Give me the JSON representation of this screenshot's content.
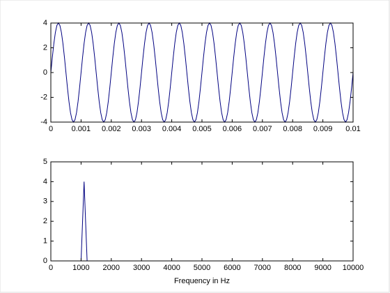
{
  "chart_data": [
    {
      "type": "line",
      "x": [
        0,
        5e-05,
        0.0001,
        0.00015,
        0.0002,
        0.00025,
        0.0003,
        0.00035,
        0.0004,
        0.00045,
        0.0005,
        0.00055,
        0.0006,
        0.00065,
        0.0007,
        0.00075,
        0.0008,
        0.00085,
        0.0009,
        0.00095,
        0.001,
        0.00105,
        0.0011,
        0.00115,
        0.0012,
        0.00125,
        0.0013,
        0.00135,
        0.0014,
        0.00145,
        0.0015,
        0.00155,
        0.0016,
        0.00165,
        0.0017,
        0.00175,
        0.0018,
        0.00185,
        0.0019,
        0.00195,
        0.002,
        0.00205,
        0.0021,
        0.00215,
        0.0022,
        0.00225,
        0.0023,
        0.00235,
        0.0024,
        0.00245,
        0.0025,
        0.00255,
        0.0026,
        0.00265,
        0.0027,
        0.00275,
        0.0028,
        0.00285,
        0.0029,
        0.00295,
        0.003,
        0.00305,
        0.0031,
        0.00315,
        0.0032,
        0.00325,
        0.0033,
        0.00335,
        0.0034,
        0.00345,
        0.0035,
        0.00355,
        0.0036,
        0.00365,
        0.0037,
        0.00375,
        0.0038,
        0.00385,
        0.0039,
        0.00395,
        0.004,
        0.00405,
        0.0041,
        0.00415,
        0.0042,
        0.00425,
        0.0043,
        0.00435,
        0.0044,
        0.00445,
        0.0045,
        0.00455,
        0.0046,
        0.00465,
        0.0047,
        0.00475,
        0.0048,
        0.00485,
        0.0049,
        0.00495,
        0.005,
        0.00505,
        0.0051,
        0.00515,
        0.0052,
        0.00525,
        0.0053,
        0.00535,
        0.0054,
        0.00545,
        0.0055,
        0.00555,
        0.0056,
        0.00565,
        0.0057,
        0.00575,
        0.0058,
        0.00585,
        0.0059,
        0.00595,
        0.006,
        0.00605,
        0.0061,
        0.00615,
        0.0062,
        0.00625,
        0.0063,
        0.00635,
        0.0064,
        0.00645,
        0.0065,
        0.00655,
        0.0066,
        0.00665,
        0.0067,
        0.00675,
        0.0068,
        0.00685,
        0.0069,
        0.00695,
        0.007,
        0.00705,
        0.0071,
        0.00715,
        0.0072,
        0.00725,
        0.0073,
        0.00735,
        0.0074,
        0.00745,
        0.0075,
        0.00755,
        0.0076,
        0.00765,
        0.0077,
        0.00775,
        0.0078,
        0.00785,
        0.0079,
        0.00795,
        0.008,
        0.00805,
        0.0081,
        0.00815,
        0.0082,
        0.00825,
        0.0083,
        0.00835,
        0.0084,
        0.00845,
        0.0085,
        0.00855,
        0.0086,
        0.00865,
        0.0087,
        0.00875,
        0.0088,
        0.00885,
        0.0089,
        0.00895,
        0.009,
        0.00905,
        0.0091,
        0.00915,
        0.0092,
        0.00925,
        0.0093,
        0.00935,
        0.0094,
        0.00945,
        0.0095,
        0.00955,
        0.0096,
        0.00965,
        0.0097,
        0.00975,
        0.0098,
        0.00985,
        0.0099,
        0.00995,
        0.01
      ],
      "series": [
        {
          "color": "#000080",
          "values": [
            0,
            1.236,
            2.351,
            3.236,
            3.804,
            4,
            3.804,
            3.236,
            2.351,
            1.236,
            0,
            -1.236,
            -2.351,
            -3.236,
            -3.804,
            -4,
            -3.804,
            -3.236,
            -2.351,
            -1.236,
            0,
            1.236,
            2.351,
            3.236,
            3.804,
            4,
            3.804,
            3.236,
            2.351,
            1.236,
            0,
            -1.236,
            -2.351,
            -3.236,
            -3.804,
            -4,
            -3.804,
            -3.236,
            -2.351,
            -1.236,
            0,
            1.236,
            2.351,
            3.236,
            3.804,
            4,
            3.804,
            3.236,
            2.351,
            1.236,
            0,
            -1.236,
            -2.351,
            -3.236,
            -3.804,
            -4,
            -3.804,
            -3.236,
            -2.351,
            -1.236,
            0,
            1.236,
            2.351,
            3.236,
            3.804,
            4,
            3.804,
            3.236,
            2.351,
            1.236,
            0,
            -1.236,
            -2.351,
            -3.236,
            -3.804,
            -4,
            -3.804,
            -3.236,
            -2.351,
            -1.236,
            0,
            1.236,
            2.351,
            3.236,
            3.804,
            4,
            3.804,
            3.236,
            2.351,
            1.236,
            0,
            -1.236,
            -2.351,
            -3.236,
            -3.804,
            -4,
            -3.804,
            -3.236,
            -2.351,
            -1.236,
            0,
            1.236,
            2.351,
            3.236,
            3.804,
            4,
            3.804,
            3.236,
            2.351,
            1.236,
            0,
            -1.236,
            -2.351,
            -3.236,
            -3.804,
            -4,
            -3.804,
            -3.236,
            -2.351,
            -1.236,
            0,
            1.236,
            2.351,
            3.236,
            3.804,
            4,
            3.804,
            3.236,
            2.351,
            1.236,
            0,
            -1.236,
            -2.351,
            -3.236,
            -3.804,
            -4,
            -3.804,
            -3.236,
            -2.351,
            -1.236,
            0,
            1.236,
            2.351,
            3.236,
            3.804,
            4,
            3.804,
            3.236,
            2.351,
            1.236,
            0,
            -1.236,
            -2.351,
            -3.236,
            -3.804,
            -4,
            -3.804,
            -3.236,
            -2.351,
            -1.236,
            0,
            1.236,
            2.351,
            3.236,
            3.804,
            4,
            3.804,
            3.236,
            2.351,
            1.236,
            0,
            -1.236,
            -2.351,
            -3.236,
            -3.804,
            -4,
            -3.804,
            -3.236,
            -2.351,
            -1.236,
            0,
            1.236,
            2.351,
            3.236,
            3.804,
            4,
            3.804,
            3.236,
            2.351,
            1.236,
            0,
            -1.236,
            -2.351,
            -3.236,
            -3.804,
            -4,
            -3.804,
            -3.236,
            -2.351,
            -1.236,
            0
          ]
        }
      ],
      "xlim": [
        0,
        0.01
      ],
      "xticks": [
        0,
        0.001,
        0.002,
        0.003,
        0.004,
        0.005,
        0.006,
        0.007,
        0.008,
        0.009,
        0.01
      ],
      "ylim": [
        -4,
        4
      ],
      "yticks": [
        -4,
        -2,
        0,
        2,
        4
      ]
    },
    {
      "type": "line",
      "xlabel": "Frequency in Hz",
      "x": [
        0,
        1000,
        1100,
        1200,
        10000
      ],
      "series": [
        {
          "color": "#000080",
          "values": [
            0,
            0,
            4,
            0,
            0
          ]
        }
      ],
      "xlim": [
        0,
        10000
      ],
      "xticks": [
        0,
        1000,
        2000,
        3000,
        4000,
        5000,
        6000,
        7000,
        8000,
        9000,
        10000
      ],
      "ylim": [
        0,
        5
      ],
      "yticks": [
        0,
        1,
        2,
        3,
        4,
        5
      ]
    }
  ]
}
